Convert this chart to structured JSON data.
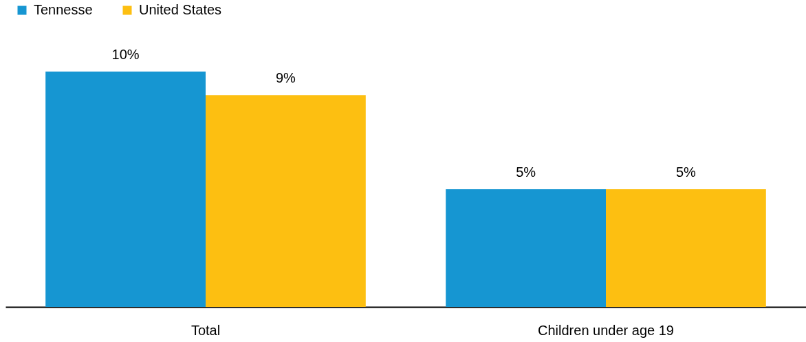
{
  "chart_data": {
    "type": "bar",
    "categories": [
      "Total",
      "Children under age 19"
    ],
    "series": [
      {
        "name": "Tennesse",
        "color": "#1696d2",
        "values": [
          10,
          5
        ],
        "value_labels": [
          "10%",
          "5%"
        ]
      },
      {
        "name": "United States",
        "color": "#fdbf11",
        "values": [
          9,
          5
        ],
        "value_labels": [
          "9%",
          "5%"
        ]
      }
    ],
    "legend": "top left",
    "grid": false
  }
}
